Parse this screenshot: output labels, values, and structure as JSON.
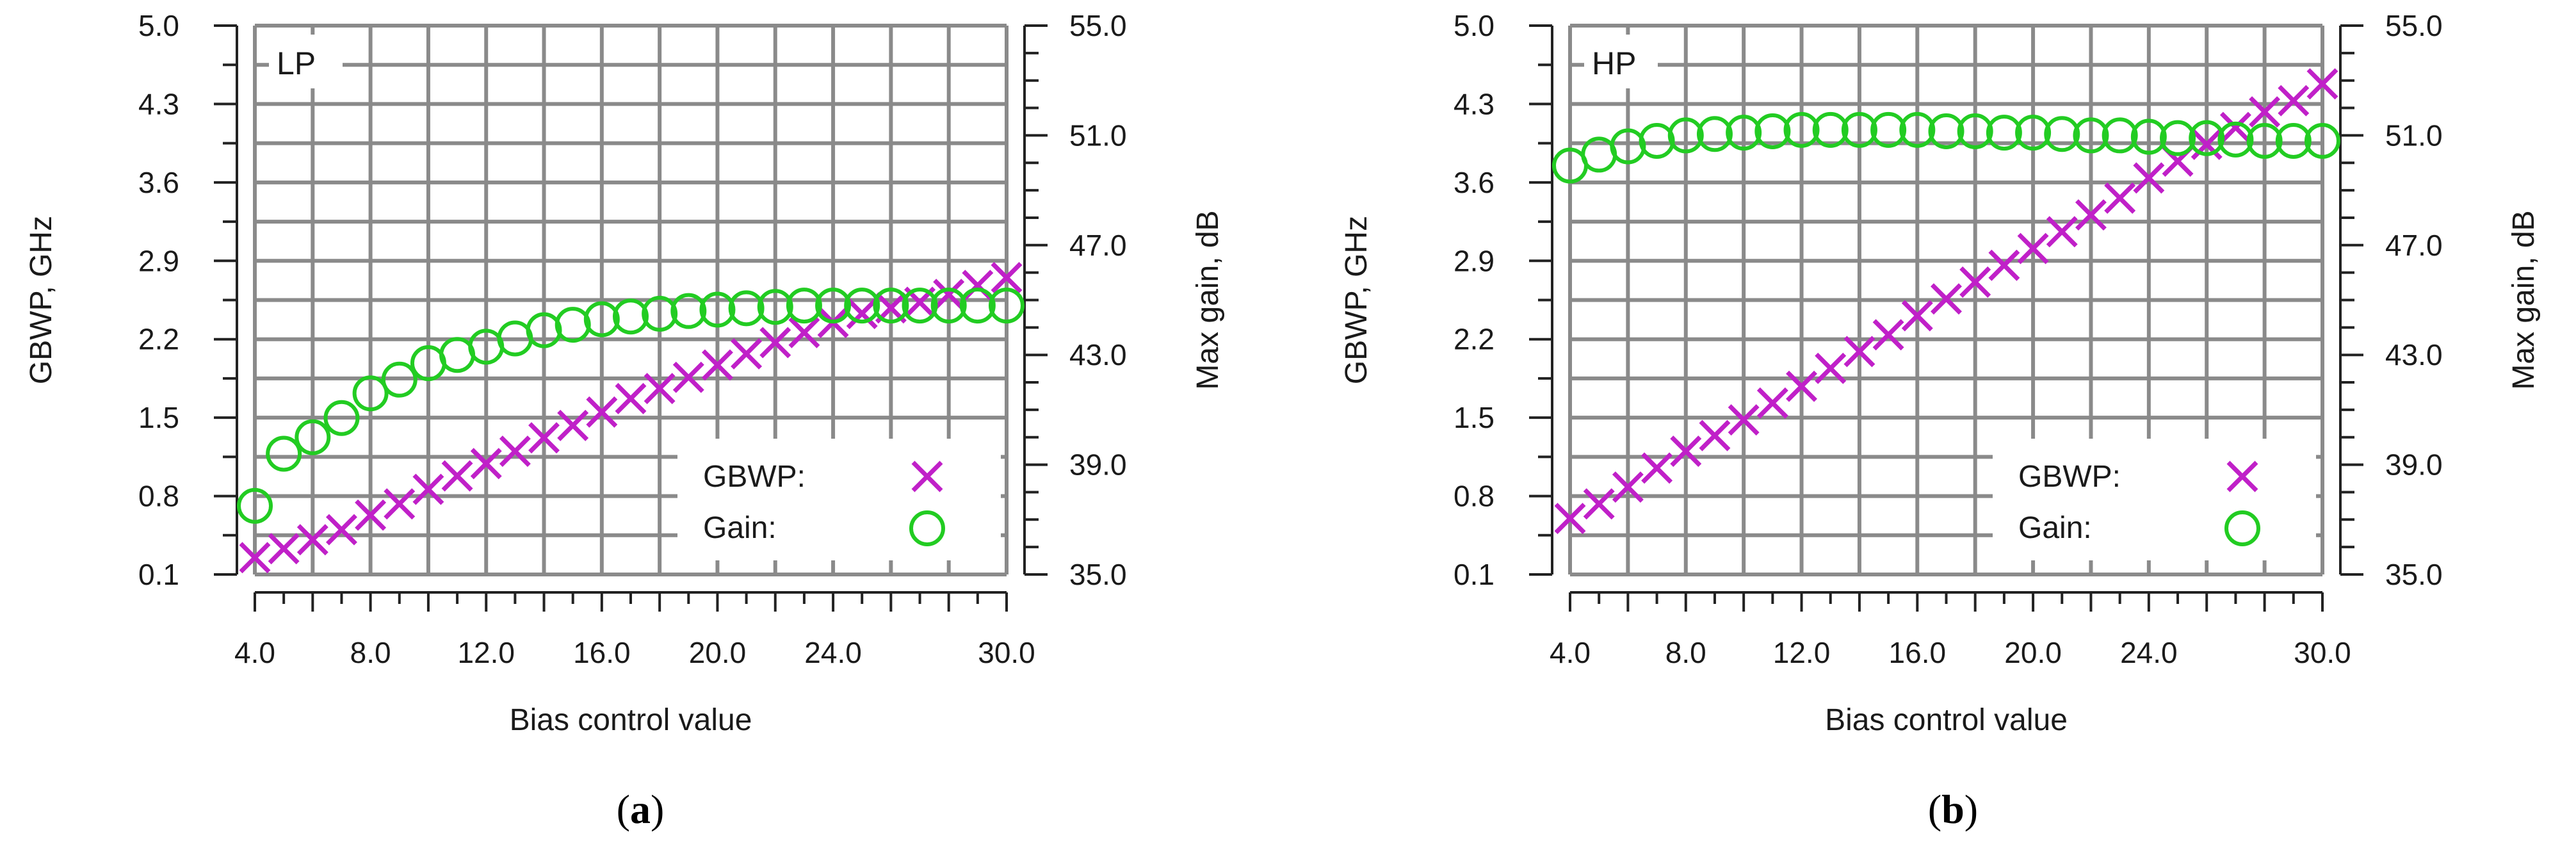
{
  "chart_data": [
    {
      "type": "scatter",
      "panel_tag": "LP",
      "caption_letter": "a",
      "xlabel": "Bias control value",
      "ylabel_left": "GBWP, GHz",
      "ylabel_right": "Max gain, dB",
      "x_ticks": [
        "4.0",
        "8.0",
        "12.0",
        "16.0",
        "20.0",
        "24.0",
        "30.0"
      ],
      "y_left_ticks": [
        "5.0",
        "4.3",
        "3.6",
        "2.9",
        "2.2",
        "1.5",
        "0.8",
        "0.1"
      ],
      "y_right_ticks": [
        "55.0",
        "51.0",
        "47.0",
        "43.0",
        "39.0",
        "35.0"
      ],
      "xlim": [
        4,
        30
      ],
      "ylim_left": [
        0.1,
        5.0
      ],
      "ylim_right": [
        35,
        55
      ],
      "grid": true,
      "legend": {
        "position": "bottom-right",
        "entries": [
          "GBWP:",
          "Gain:"
        ]
      },
      "x": [
        4,
        5,
        6,
        7,
        8,
        9,
        10,
        11,
        12,
        13,
        14,
        15,
        16,
        17,
        18,
        19,
        20,
        21,
        22,
        23,
        24,
        25,
        26,
        27,
        28,
        29,
        30
      ],
      "series": [
        {
          "name": "GBWP:",
          "axis": "left",
          "marker": "x",
          "color": "#c020c8",
          "values": [
            0.25,
            0.33,
            0.41,
            0.5,
            0.63,
            0.73,
            0.86,
            0.98,
            1.09,
            1.2,
            1.32,
            1.43,
            1.55,
            1.67,
            1.76,
            1.86,
            1.97,
            2.07,
            2.17,
            2.26,
            2.35,
            2.43,
            2.48,
            2.53,
            2.6,
            2.68,
            2.75
          ]
        },
        {
          "name": "Gain:",
          "axis": "right",
          "marker": "o",
          "color": "#22cc22",
          "values": [
            37.5,
            39.4,
            40.0,
            40.7,
            41.6,
            42.1,
            42.7,
            43.0,
            43.3,
            43.6,
            43.9,
            44.1,
            44.3,
            44.4,
            44.5,
            44.6,
            44.65,
            44.7,
            44.75,
            44.8,
            44.8,
            44.8,
            44.8,
            44.8,
            44.8,
            44.8,
            44.8
          ]
        }
      ]
    },
    {
      "type": "scatter",
      "panel_tag": "HP",
      "caption_letter": "b",
      "xlabel": "Bias control value",
      "ylabel_left": "GBWP, GHz",
      "ylabel_right": "Max gain, dB",
      "x_ticks": [
        "4.0",
        "8.0",
        "12.0",
        "16.0",
        "20.0",
        "24.0",
        "30.0"
      ],
      "y_left_ticks": [
        "5.0",
        "4.3",
        "3.6",
        "2.9",
        "2.2",
        "1.5",
        "0.8",
        "0.1"
      ],
      "y_right_ticks": [
        "55.0",
        "51.0",
        "47.0",
        "43.0",
        "39.0",
        "35.0"
      ],
      "xlim": [
        4,
        30
      ],
      "ylim_left": [
        0.1,
        5.0
      ],
      "ylim_right": [
        35,
        55
      ],
      "grid": true,
      "legend": {
        "position": "bottom-right",
        "entries": [
          "GBWP:",
          "Gain:"
        ]
      },
      "x": [
        4,
        5,
        6,
        7,
        8,
        9,
        10,
        11,
        12,
        13,
        14,
        15,
        16,
        17,
        18,
        19,
        20,
        21,
        22,
        23,
        24,
        25,
        26,
        27,
        28,
        29,
        30
      ],
      "series": [
        {
          "name": "GBWP:",
          "axis": "left",
          "marker": "x",
          "color": "#c020c8",
          "values": [
            0.6,
            0.73,
            0.88,
            1.05,
            1.2,
            1.34,
            1.48,
            1.63,
            1.78,
            1.94,
            2.09,
            2.24,
            2.41,
            2.56,
            2.71,
            2.86,
            3.01,
            3.16,
            3.31,
            3.46,
            3.64,
            3.79,
            3.94,
            4.09,
            4.23,
            4.33,
            4.48
          ]
        },
        {
          "name": "Gain:",
          "axis": "right",
          "marker": "o",
          "color": "#22cc22",
          "values": [
            49.9,
            50.3,
            50.6,
            50.8,
            51.0,
            51.05,
            51.1,
            51.15,
            51.2,
            51.2,
            51.2,
            51.2,
            51.2,
            51.15,
            51.15,
            51.1,
            51.1,
            51.05,
            51.0,
            51.0,
            50.95,
            50.9,
            50.9,
            50.85,
            50.8,
            50.8,
            50.8
          ]
        }
      ]
    }
  ]
}
